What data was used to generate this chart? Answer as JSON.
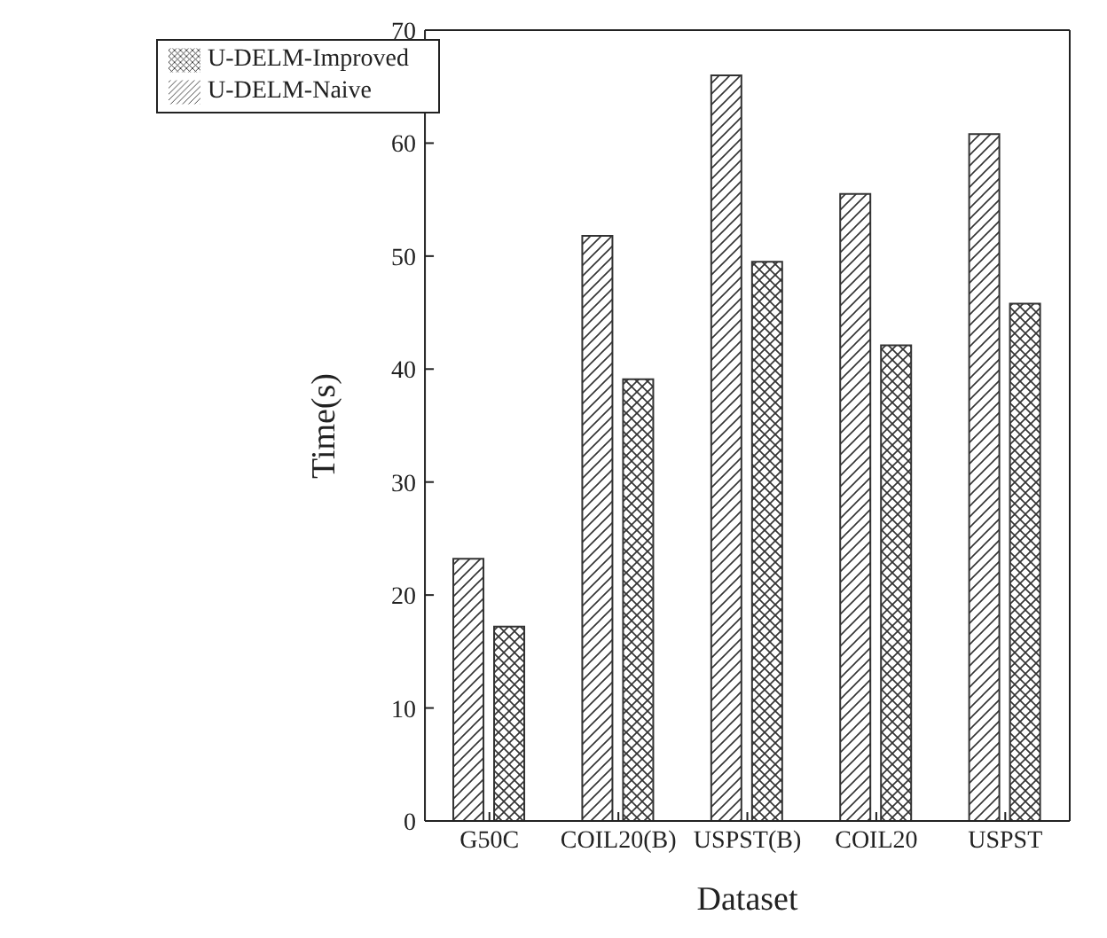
{
  "chart_data": {
    "type": "bar",
    "xlabel": "Dataset",
    "ylabel": "Time(s)",
    "categories": [
      "G50C",
      "COIL20(B)",
      "USPST(B)",
      "COIL20",
      "USPST"
    ],
    "series": [
      {
        "name": "U-DELM-Naive",
        "color": "#333333",
        "values": [
          23.2,
          51.8,
          66.0,
          55.5,
          60.8
        ]
      },
      {
        "name": "U-DELM-Improved",
        "color": "#333333",
        "values": [
          17.2,
          39.1,
          49.5,
          42.1,
          45.8
        ]
      }
    ],
    "ylim": [
      0,
      70
    ],
    "yticks": [
      0,
      10,
      20,
      30,
      40,
      50,
      60,
      70
    ],
    "grid": false,
    "legend": "top left"
  }
}
